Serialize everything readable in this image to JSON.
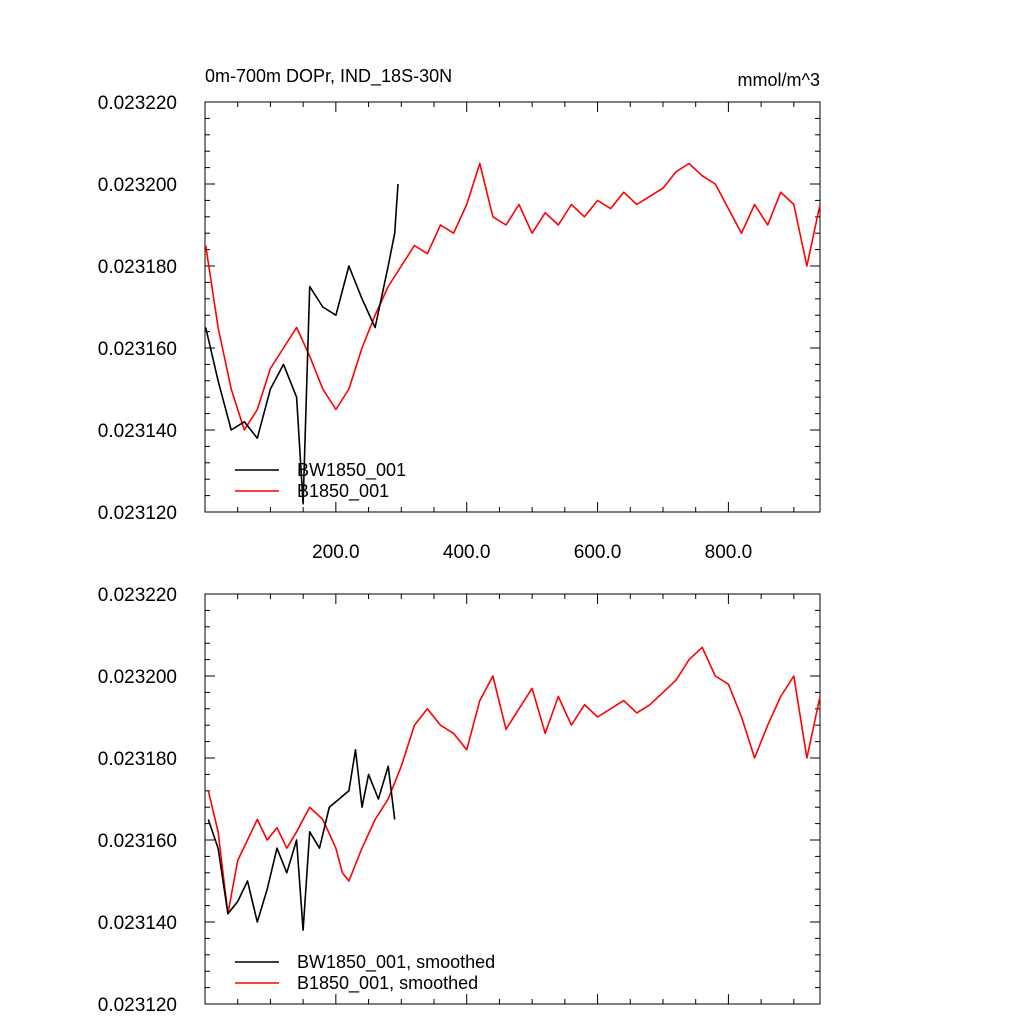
{
  "figure": {
    "title_left": "0m-700m DOPr, IND_18S-30N",
    "title_right": "mmol/m^3"
  },
  "chart_data": [
    {
      "type": "line",
      "title": "0m-700m DOPr, IND_18S-30N",
      "units": "mmol/m^3",
      "xlim": [
        0,
        940
      ],
      "ylim": [
        0.02312,
        0.02322
      ],
      "xticks": [
        200,
        400,
        600,
        800
      ],
      "xtick_labels": [
        "200.0",
        "400.0",
        "600.0",
        "800.0"
      ],
      "yticks": [
        0.02312,
        0.02314,
        0.02316,
        0.02318,
        0.0232,
        0.02322
      ],
      "ytick_labels": [
        "0.023120",
        "0.023140",
        "0.023160",
        "0.023180",
        "0.023200",
        "0.023220"
      ],
      "legend_position": "bottom-left",
      "series": [
        {
          "name": "BW1850_001",
          "color": "#000000",
          "x": [
            1,
            20,
            40,
            60,
            80,
            100,
            120,
            140,
            150,
            160,
            180,
            200,
            220,
            240,
            260,
            280,
            290,
            295
          ],
          "y": [
            0.023165,
            0.023152,
            0.02314,
            0.023142,
            0.023138,
            0.02315,
            0.023156,
            0.023148,
            0.023122,
            0.023175,
            0.02317,
            0.023168,
            0.02318,
            0.023172,
            0.023165,
            0.02318,
            0.023188,
            0.0232
          ]
        },
        {
          "name": "B1850_001",
          "color": "#ff0000",
          "x": [
            1,
            20,
            40,
            60,
            80,
            100,
            120,
            140,
            160,
            180,
            200,
            220,
            240,
            260,
            280,
            300,
            320,
            340,
            360,
            380,
            400,
            420,
            440,
            460,
            480,
            500,
            520,
            540,
            560,
            580,
            600,
            620,
            640,
            660,
            680,
            700,
            720,
            740,
            760,
            780,
            800,
            820,
            840,
            860,
            880,
            900,
            920,
            940
          ],
          "y": [
            0.023185,
            0.023165,
            0.02315,
            0.02314,
            0.023145,
            0.023155,
            0.02316,
            0.023165,
            0.023158,
            0.02315,
            0.023145,
            0.02315,
            0.02316,
            0.023168,
            0.023175,
            0.02318,
            0.023185,
            0.023183,
            0.02319,
            0.023188,
            0.023195,
            0.023205,
            0.023192,
            0.02319,
            0.023195,
            0.023188,
            0.023193,
            0.02319,
            0.023195,
            0.023192,
            0.023196,
            0.023194,
            0.023198,
            0.023195,
            0.023197,
            0.023199,
            0.023203,
            0.023205,
            0.023202,
            0.0232,
            0.023194,
            0.023188,
            0.023195,
            0.02319,
            0.023198,
            0.023195,
            0.02318,
            0.023195
          ]
        }
      ]
    },
    {
      "type": "line",
      "xlim": [
        0,
        940
      ],
      "ylim": [
        0.02312,
        0.02322
      ],
      "xticks": [
        200,
        400,
        600,
        800
      ],
      "xtick_labels": [],
      "yticks": [
        0.02312,
        0.02314,
        0.02316,
        0.02318,
        0.0232,
        0.02322
      ],
      "ytick_labels": [
        "0.023120",
        "0.023140",
        "0.023160",
        "0.023180",
        "0.023200",
        "0.023220"
      ],
      "legend_position": "bottom-left",
      "series": [
        {
          "name": "BW1850_001, smoothed",
          "color": "#000000",
          "x": [
            5,
            20,
            35,
            50,
            65,
            80,
            95,
            110,
            125,
            140,
            150,
            160,
            175,
            190,
            205,
            220,
            230,
            240,
            250,
            265,
            280,
            290
          ],
          "y": [
            0.023165,
            0.023158,
            0.023142,
            0.023145,
            0.02315,
            0.02314,
            0.023148,
            0.023158,
            0.023152,
            0.02316,
            0.023138,
            0.023162,
            0.023158,
            0.023168,
            0.02317,
            0.023172,
            0.023182,
            0.023168,
            0.023176,
            0.02317,
            0.023178,
            0.023165
          ]
        },
        {
          "name": "B1850_001, smoothed",
          "color": "#ff0000",
          "x": [
            5,
            20,
            35,
            50,
            65,
            80,
            95,
            110,
            125,
            140,
            160,
            180,
            200,
            210,
            220,
            240,
            260,
            280,
            300,
            320,
            340,
            360,
            380,
            400,
            420,
            440,
            460,
            480,
            500,
            520,
            540,
            560,
            580,
            600,
            620,
            640,
            660,
            680,
            700,
            720,
            740,
            760,
            780,
            800,
            820,
            840,
            860,
            880,
            900,
            920,
            940
          ],
          "y": [
            0.023172,
            0.023162,
            0.023142,
            0.023155,
            0.02316,
            0.023165,
            0.02316,
            0.023163,
            0.023158,
            0.023162,
            0.023168,
            0.023165,
            0.023158,
            0.023152,
            0.02315,
            0.023158,
            0.023165,
            0.02317,
            0.023178,
            0.023188,
            0.023192,
            0.023188,
            0.023186,
            0.023182,
            0.023194,
            0.0232,
            0.023187,
            0.023192,
            0.023197,
            0.023186,
            0.023195,
            0.023188,
            0.023193,
            0.02319,
            0.023192,
            0.023194,
            0.023191,
            0.023193,
            0.023196,
            0.023199,
            0.023204,
            0.023207,
            0.0232,
            0.023198,
            0.02319,
            0.02318,
            0.023188,
            0.023195,
            0.0232,
            0.02318,
            0.023195
          ]
        }
      ]
    }
  ]
}
